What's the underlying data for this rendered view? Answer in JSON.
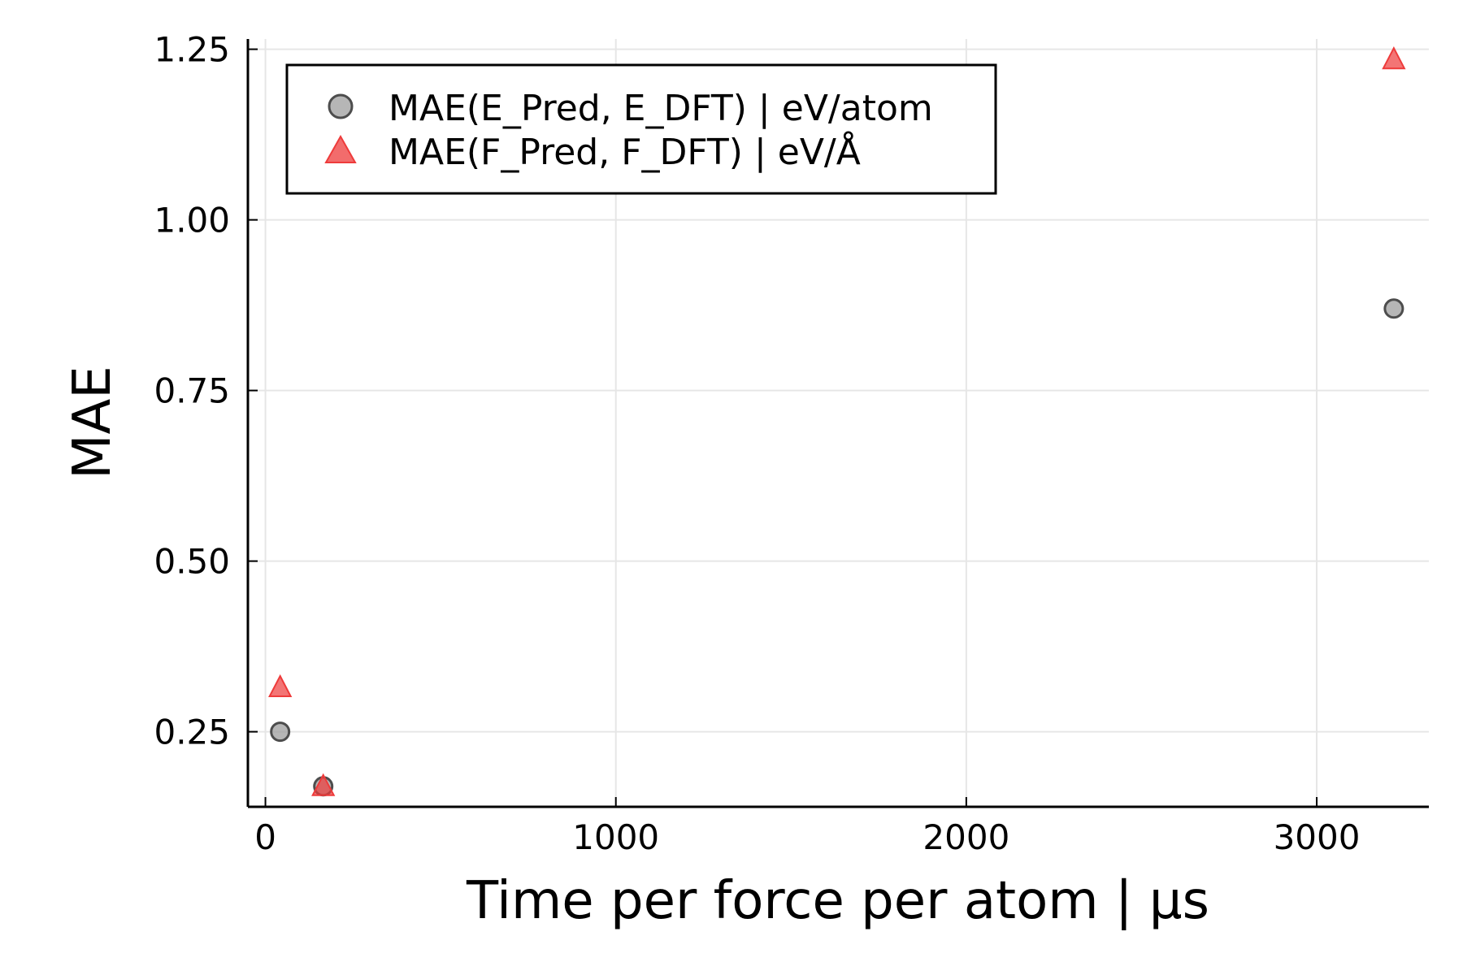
{
  "chart_data": {
    "type": "scatter",
    "xlabel": "Time per force per atom | μs",
    "ylabel": "MAE",
    "xlim": [
      -50,
      3320
    ],
    "ylim": [
      0.14,
      1.265
    ],
    "xticks": [
      0,
      1000,
      2000,
      3000
    ],
    "xtick_labels": [
      "0",
      "1000",
      "2000",
      "3000"
    ],
    "yticks": [
      0.25,
      0.5,
      0.75,
      1.0,
      1.25
    ],
    "ytick_labels": [
      "0.25",
      "0.50",
      "0.75",
      "1.00",
      "1.25"
    ],
    "grid": true,
    "legend_position": "top-left",
    "series": [
      {
        "name": "MAE(E_Pred, E_DFT) | eV/atom",
        "marker": "circle",
        "color": "#9e9e9e",
        "x": [
          42,
          165,
          3220
        ],
        "y": [
          0.25,
          0.17,
          0.87
        ]
      },
      {
        "name": "MAE(F_Pred, F_DFT) | eV/Å",
        "marker": "triangle",
        "color": "#ee3b3b",
        "x": [
          42,
          165,
          3220
        ],
        "y": [
          0.315,
          0.17,
          1.235
        ]
      }
    ]
  }
}
